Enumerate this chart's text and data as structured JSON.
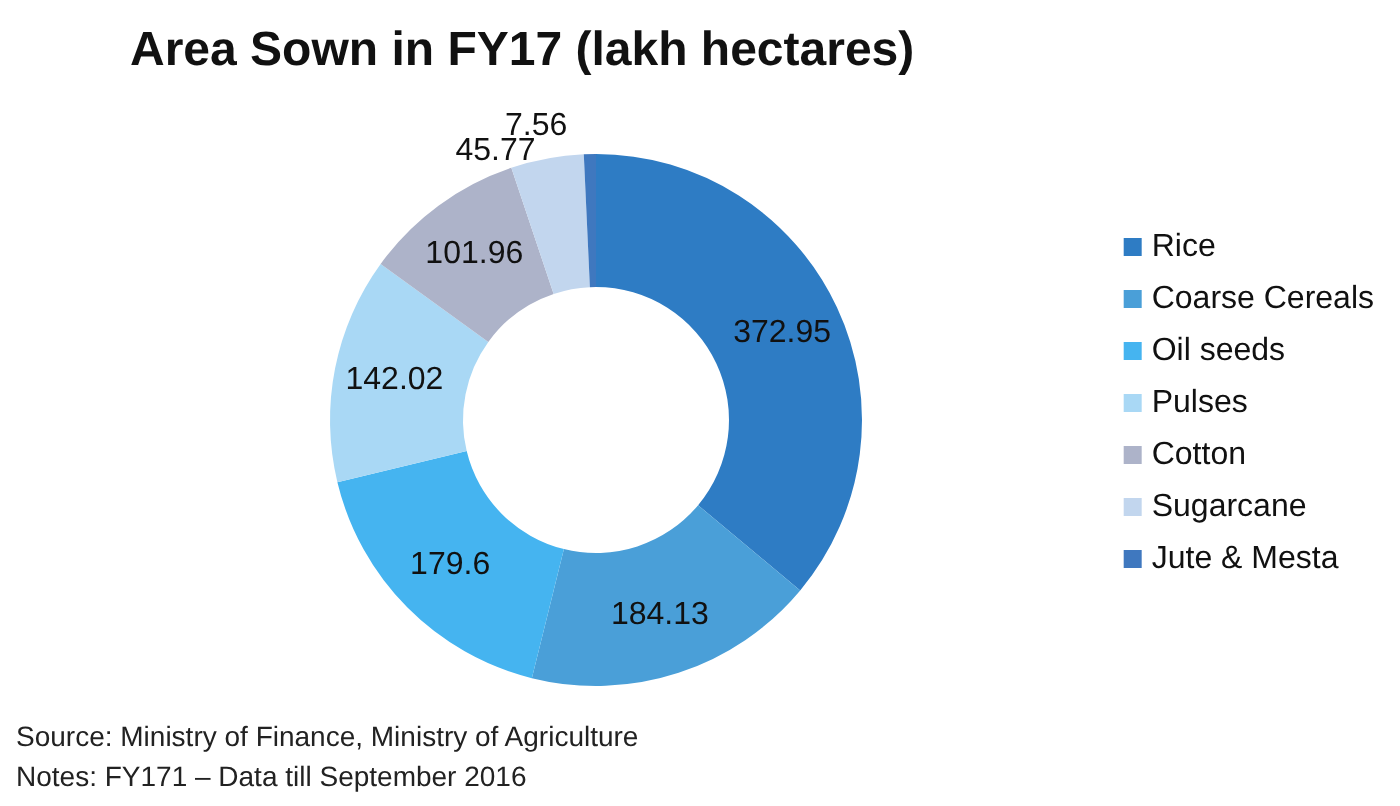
{
  "chart_data": {
    "type": "donut",
    "title": "Area Sown in FY17 (lakh hectares)",
    "categories": [
      "Rice",
      "Coarse Cereals",
      "Oil seeds",
      "Pulses",
      "Cotton",
      "Sugarcane",
      "Jute & Mesta"
    ],
    "values": [
      372.95,
      184.13,
      179.6,
      142.02,
      101.96,
      45.77,
      7.56
    ],
    "colors": [
      "#2e7cc4",
      "#4a9fd8",
      "#45b4f0",
      "#a9d8f5",
      "#adb3c9",
      "#c2d6ee",
      "#3f78bf"
    ],
    "data_labels": true,
    "legend": "right",
    "annotations": [
      "Source: Ministry of Finance, Ministry of Agriculture",
      "Notes: FY171 – Data till September 2016"
    ]
  }
}
